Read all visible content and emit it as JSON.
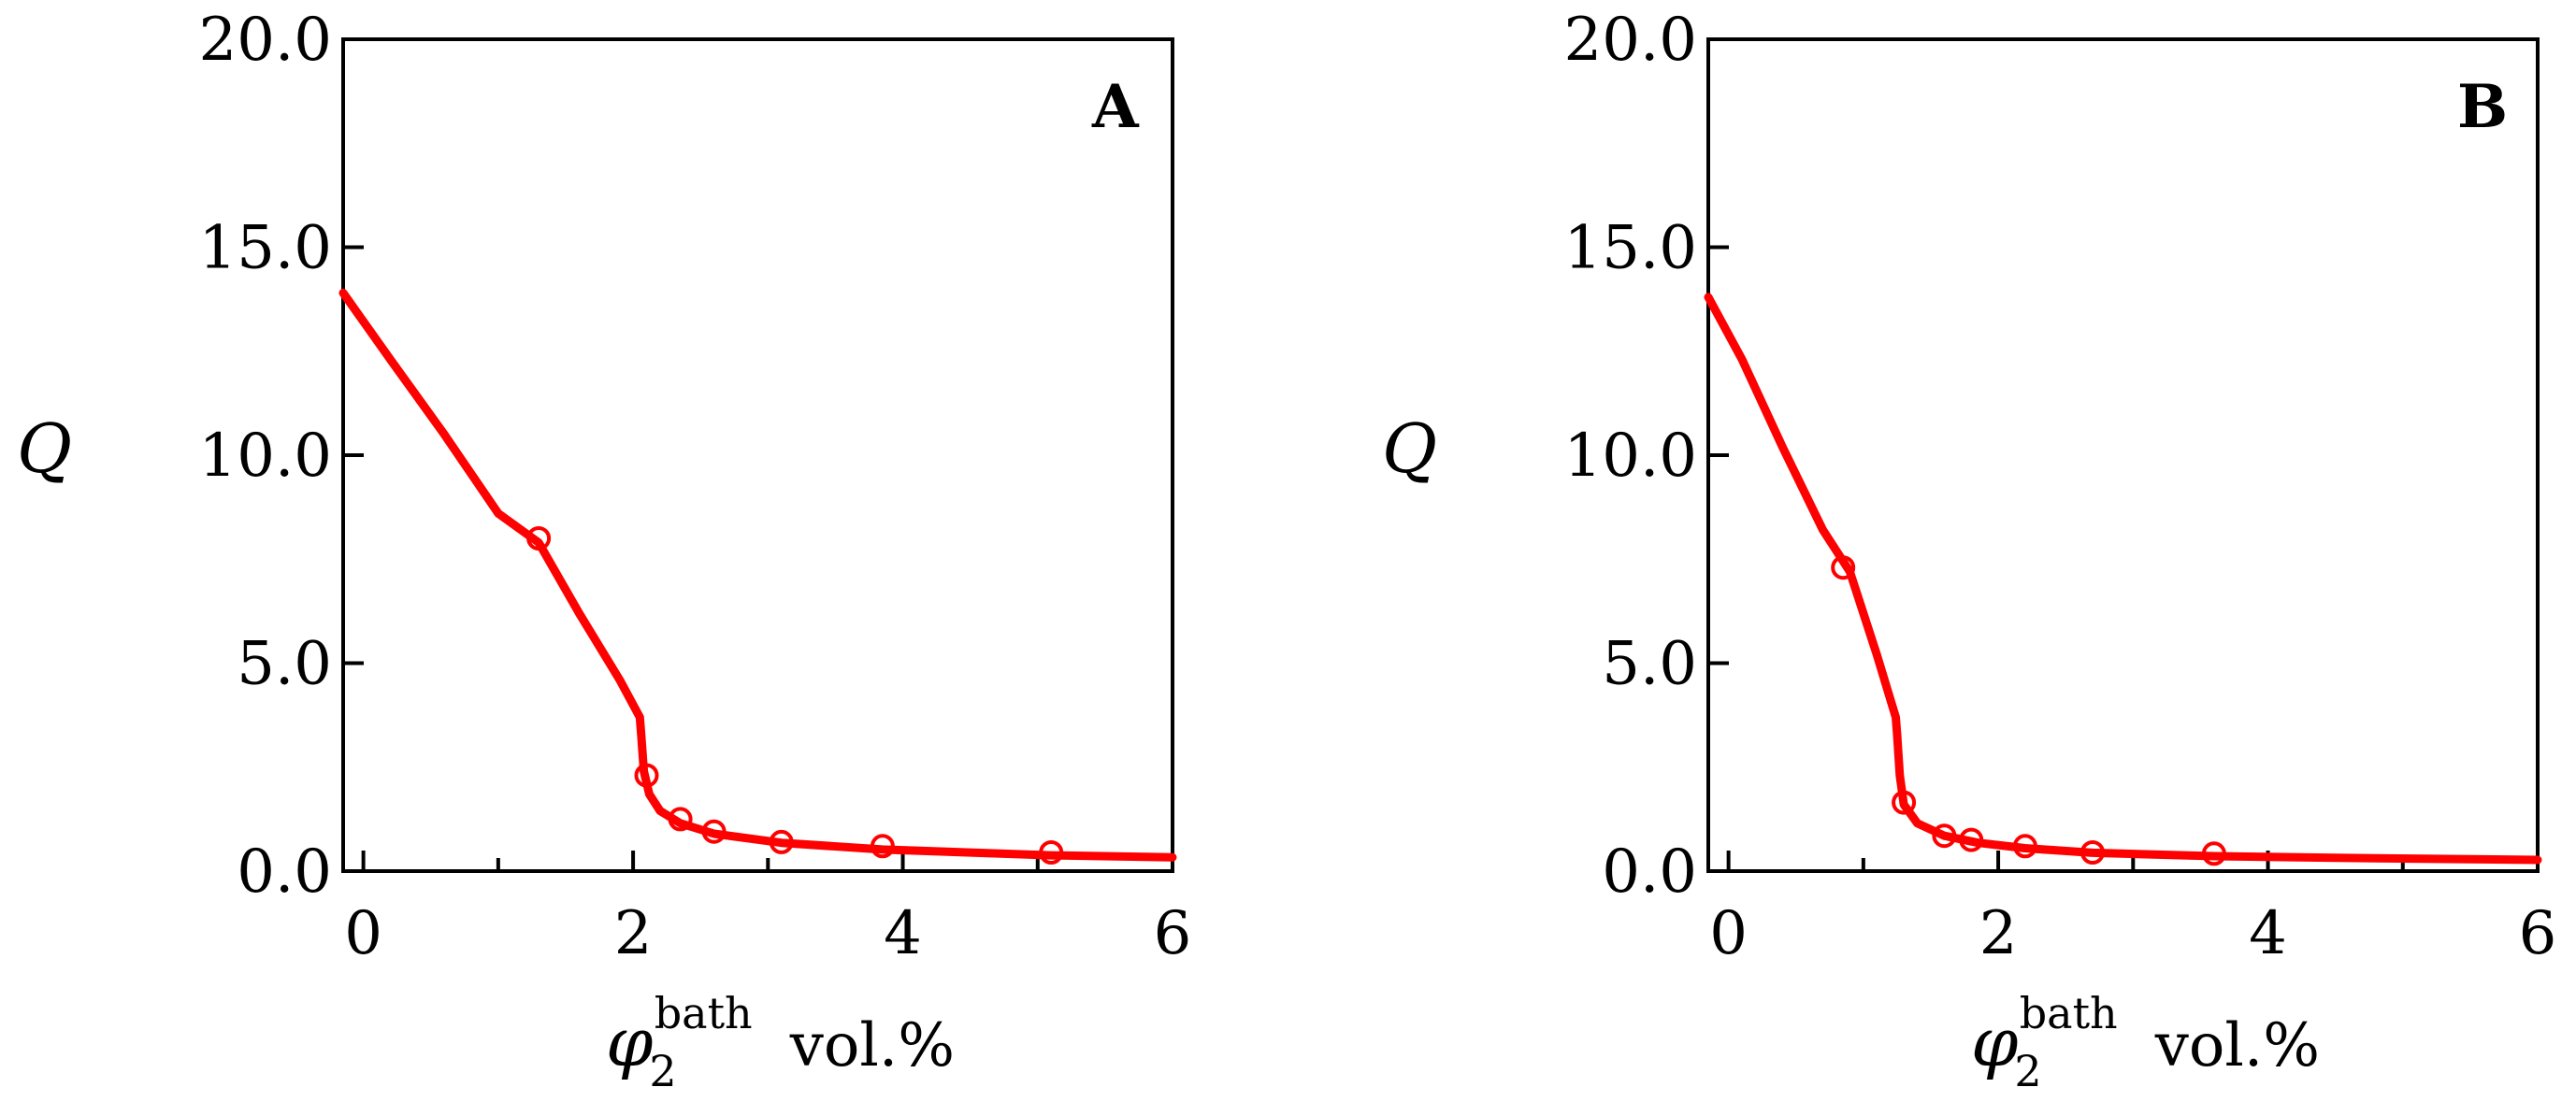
{
  "chart_data": [
    {
      "type": "line",
      "panel_label": "A",
      "ylabel": "Q",
      "xlabel": {
        "symbol": "φ",
        "superscript": "bath",
        "subscript": "2",
        "unit": "vol.%"
      },
      "xlim": [
        -0.15,
        6
      ],
      "ylim": [
        0,
        20
      ],
      "xticks": [
        0,
        2,
        4,
        6
      ],
      "xtick_labels": [
        "0",
        "2",
        "4",
        "6"
      ],
      "xticks_minor": [
        1,
        3,
        5
      ],
      "yticks": [
        0,
        5,
        10,
        15,
        20
      ],
      "ytick_labels": [
        "0.0",
        "5.0",
        "10.0",
        "15.0",
        "20.0"
      ],
      "grid": false,
      "series": [
        {
          "kind": "line",
          "color": "#ff0000",
          "x": [
            -0.15,
            0.2,
            0.6,
            1.0,
            1.3,
            1.6,
            1.9,
            2.05,
            2.06,
            2.08,
            2.12,
            2.2,
            2.35,
            2.6,
            3.1,
            3.85,
            5.1,
            6.0
          ],
          "y": [
            13.9,
            12.3,
            10.5,
            8.6,
            7.9,
            6.2,
            4.6,
            3.7,
            3.3,
            2.4,
            1.85,
            1.45,
            1.15,
            0.9,
            0.68,
            0.52,
            0.38,
            0.33
          ]
        },
        {
          "kind": "scatter",
          "marker": "open-circle",
          "color": "#ff0000",
          "x": [
            1.3,
            2.1,
            2.35,
            2.6,
            3.1,
            3.85,
            5.1
          ],
          "y": [
            8.0,
            2.3,
            1.25,
            0.95,
            0.7,
            0.6,
            0.45
          ]
        }
      ]
    },
    {
      "type": "line",
      "panel_label": "B",
      "ylabel": "Q",
      "xlabel": {
        "symbol": "φ",
        "superscript": "bath",
        "subscript": "2",
        "unit": "vol.%"
      },
      "xlim": [
        -0.15,
        6
      ],
      "ylim": [
        0,
        20
      ],
      "xticks": [
        0,
        2,
        4,
        6
      ],
      "xtick_labels": [
        "0",
        "2",
        "4",
        "6"
      ],
      "xticks_minor": [
        1,
        3,
        5
      ],
      "yticks": [
        0,
        5,
        10,
        15,
        20
      ],
      "ytick_labels": [
        "0.0",
        "5.0",
        "10.0",
        "15.0",
        "20.0"
      ],
      "grid": false,
      "series": [
        {
          "kind": "line",
          "color": "#ff0000",
          "x": [
            -0.15,
            0.1,
            0.4,
            0.7,
            0.9,
            1.1,
            1.24,
            1.25,
            1.27,
            1.3,
            1.4,
            1.6,
            1.85,
            2.2,
            2.7,
            3.6,
            4.5,
            6.0
          ],
          "y": [
            13.8,
            12.3,
            10.2,
            8.2,
            7.2,
            5.2,
            3.7,
            3.3,
            2.3,
            1.6,
            1.15,
            0.85,
            0.68,
            0.55,
            0.44,
            0.36,
            0.32,
            0.27
          ]
        },
        {
          "kind": "scatter",
          "marker": "open-circle",
          "color": "#ff0000",
          "x": [
            0.85,
            1.3,
            1.6,
            1.8,
            2.2,
            2.7,
            3.6
          ],
          "y": [
            7.3,
            1.65,
            0.85,
            0.75,
            0.6,
            0.45,
            0.42
          ]
        }
      ]
    }
  ]
}
